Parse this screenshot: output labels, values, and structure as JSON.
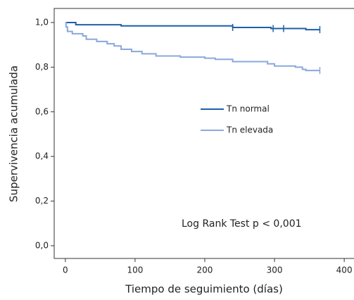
{
  "chart_data": {
    "type": "line",
    "step": true,
    "xlabel": "Tiempo de seguimiento (días)",
    "ylabel": "Supervivencia acumulada",
    "xlim": [
      -16,
      414
    ],
    "ylim": [
      -0.057,
      1.063
    ],
    "xticks": [
      0,
      100,
      200,
      300,
      400
    ],
    "yticks": [
      {
        "value": 0.0,
        "label": "0,0"
      },
      {
        "value": 0.2,
        "label": "0,2"
      },
      {
        "value": 0.4,
        "label": "0,4"
      },
      {
        "value": 0.6,
        "label": "0,6"
      },
      {
        "value": 0.8,
        "label": "0,8"
      },
      {
        "value": 1.0,
        "label": "1,0"
      }
    ],
    "annotation": "Log Rank Test p < 0,001",
    "series": [
      {
        "name": "Tn normal",
        "color": "#1f5fa8",
        "x": [
          0,
          15,
          80,
          240,
          295,
          345,
          365
        ],
        "values": [
          1.0,
          0.99,
          0.985,
          0.978,
          0.973,
          0.968,
          0.968
        ],
        "censored": [
          240,
          298,
          313,
          365
        ]
      },
      {
        "name": "Tn elevada",
        "color": "#8aa8dc",
        "x": [
          0,
          1,
          3,
          10,
          25,
          30,
          45,
          60,
          70,
          80,
          95,
          110,
          130,
          165,
          200,
          215,
          240,
          290,
          300,
          330,
          340,
          345,
          365
        ],
        "values": [
          1.0,
          0.98,
          0.96,
          0.95,
          0.94,
          0.925,
          0.915,
          0.905,
          0.895,
          0.88,
          0.87,
          0.86,
          0.85,
          0.845,
          0.84,
          0.835,
          0.825,
          0.815,
          0.805,
          0.8,
          0.79,
          0.785,
          0.785
        ],
        "censored": [
          365
        ]
      }
    ]
  }
}
